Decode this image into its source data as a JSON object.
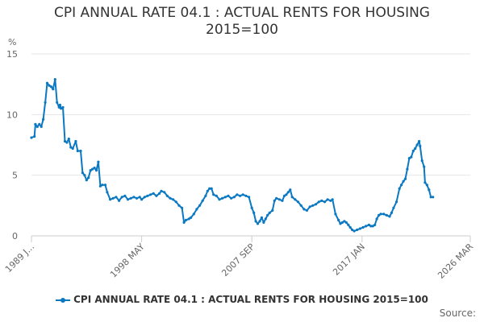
{
  "chart_data": {
    "type": "line",
    "title_lines": [
      "CPI ANNUAL RATE 04.1 : ACTUAL RENTS FOR HOUSING",
      "2015=100"
    ],
    "ylabel": "%",
    "ylim": [
      0,
      15
    ],
    "yticks": [
      "0",
      "5",
      "10",
      "15"
    ],
    "xticks": [
      {
        "label": "1989 J...",
        "index": 0
      },
      {
        "label": "1998 MAY",
        "index": 112
      },
      {
        "label": "2007 SEP",
        "index": 224
      },
      {
        "label": "2017 JAN",
        "index": 336
      },
      {
        "label": "2026 MAR",
        "index": 446
      }
    ],
    "x_count": 447,
    "grid": true,
    "legend_position": "bottom",
    "series": [
      {
        "name": "CPI ANNUAL RATE 04.1 : ACTUAL RENTS FOR HOUSING 2015=100",
        "color": "#0b78c2",
        "points": [
          [
            0,
            8.1
          ],
          [
            3,
            8.2
          ],
          [
            4,
            9.2
          ],
          [
            6,
            9.0
          ],
          [
            8,
            9.2
          ],
          [
            10,
            9.0
          ],
          [
            12,
            9.6
          ],
          [
            14,
            11.0
          ],
          [
            16,
            12.6
          ],
          [
            18,
            12.4
          ],
          [
            20,
            12.3
          ],
          [
            22,
            12.1
          ],
          [
            24,
            12.9
          ],
          [
            26,
            11.0
          ],
          [
            28,
            10.6
          ],
          [
            29,
            10.8
          ],
          [
            30,
            10.5
          ],
          [
            32,
            10.6
          ],
          [
            34,
            7.8
          ],
          [
            36,
            7.7
          ],
          [
            38,
            8.0
          ],
          [
            40,
            7.3
          ],
          [
            42,
            7.2
          ],
          [
            45,
            7.8
          ],
          [
            47,
            7.0
          ],
          [
            50,
            7.0
          ],
          [
            52,
            5.2
          ],
          [
            54,
            5.0
          ],
          [
            56,
            4.6
          ],
          [
            58,
            4.8
          ],
          [
            60,
            5.4
          ],
          [
            62,
            5.5
          ],
          [
            64,
            5.6
          ],
          [
            66,
            5.4
          ],
          [
            68,
            6.1
          ],
          [
            70,
            4.1
          ],
          [
            72,
            4.2
          ],
          [
            75,
            4.2
          ],
          [
            77,
            3.6
          ],
          [
            80,
            3.0
          ],
          [
            83,
            3.1
          ],
          [
            86,
            3.2
          ],
          [
            89,
            2.9
          ],
          [
            92,
            3.2
          ],
          [
            95,
            3.3
          ],
          [
            98,
            3.0
          ],
          [
            101,
            3.1
          ],
          [
            104,
            3.2
          ],
          [
            107,
            3.1
          ],
          [
            110,
            3.2
          ],
          [
            112,
            3.0
          ],
          [
            115,
            3.2
          ],
          [
            118,
            3.3
          ],
          [
            121,
            3.4
          ],
          [
            124,
            3.5
          ],
          [
            127,
            3.3
          ],
          [
            130,
            3.5
          ],
          [
            132,
            3.7
          ],
          [
            135,
            3.6
          ],
          [
            138,
            3.3
          ],
          [
            141,
            3.1
          ],
          [
            144,
            3.0
          ],
          [
            147,
            2.8
          ],
          [
            150,
            2.5
          ],
          [
            153,
            2.3
          ],
          [
            155,
            1.1
          ],
          [
            157,
            1.3
          ],
          [
            160,
            1.4
          ],
          [
            162,
            1.5
          ],
          [
            165,
            1.8
          ],
          [
            168,
            2.2
          ],
          [
            171,
            2.5
          ],
          [
            174,
            2.9
          ],
          [
            177,
            3.3
          ],
          [
            179,
            3.7
          ],
          [
            181,
            3.9
          ],
          [
            183,
            3.9
          ],
          [
            185,
            3.4
          ],
          [
            188,
            3.3
          ],
          [
            191,
            3.0
          ],
          [
            194,
            3.1
          ],
          [
            197,
            3.2
          ],
          [
            200,
            3.3
          ],
          [
            203,
            3.1
          ],
          [
            206,
            3.2
          ],
          [
            209,
            3.4
          ],
          [
            212,
            3.3
          ],
          [
            215,
            3.4
          ],
          [
            218,
            3.3
          ],
          [
            221,
            3.2
          ],
          [
            224,
            2.3
          ],
          [
            226,
            1.9
          ],
          [
            228,
            1.2
          ],
          [
            230,
            1.0
          ],
          [
            232,
            1.2
          ],
          [
            234,
            1.5
          ],
          [
            236,
            1.1
          ],
          [
            238,
            1.4
          ],
          [
            240,
            1.7
          ],
          [
            242,
            1.9
          ],
          [
            245,
            2.1
          ],
          [
            247,
            2.9
          ],
          [
            249,
            3.1
          ],
          [
            252,
            3.0
          ],
          [
            255,
            2.9
          ],
          [
            257,
            3.3
          ],
          [
            259,
            3.4
          ],
          [
            261,
            3.6
          ],
          [
            263,
            3.8
          ],
          [
            265,
            3.2
          ],
          [
            268,
            3.0
          ],
          [
            271,
            2.8
          ],
          [
            274,
            2.5
          ],
          [
            277,
            2.2
          ],
          [
            280,
            2.1
          ],
          [
            283,
            2.4
          ],
          [
            286,
            2.5
          ],
          [
            289,
            2.6
          ],
          [
            292,
            2.8
          ],
          [
            295,
            2.9
          ],
          [
            298,
            2.8
          ],
          [
            301,
            3.0
          ],
          [
            304,
            2.9
          ],
          [
            306,
            3.0
          ],
          [
            309,
            1.8
          ],
          [
            312,
            1.3
          ],
          [
            314,
            1.0
          ],
          [
            316,
            1.1
          ],
          [
            318,
            1.2
          ],
          [
            320,
            1.1
          ],
          [
            322,
            0.9
          ],
          [
            324,
            0.7
          ],
          [
            326,
            0.5
          ],
          [
            328,
            0.4
          ],
          [
            331,
            0.5
          ],
          [
            334,
            0.6
          ],
          [
            337,
            0.7
          ],
          [
            340,
            0.8
          ],
          [
            343,
            0.9
          ],
          [
            345,
            0.8
          ],
          [
            347,
            0.8
          ],
          [
            349,
            0.9
          ],
          [
            351,
            1.4
          ],
          [
            353,
            1.7
          ],
          [
            355,
            1.8
          ],
          [
            358,
            1.8
          ],
          [
            361,
            1.7
          ],
          [
            364,
            1.6
          ],
          [
            366,
            1.9
          ],
          [
            368,
            2.3
          ],
          [
            371,
            2.8
          ],
          [
            374,
            3.9
          ],
          [
            376,
            4.2
          ],
          [
            378,
            4.5
          ],
          [
            380,
            4.7
          ],
          [
            382,
            5.5
          ],
          [
            384,
            6.4
          ],
          [
            386,
            6.5
          ],
          [
            388,
            7.0
          ],
          [
            390,
            7.2
          ],
          [
            392,
            7.5
          ],
          [
            394,
            7.8
          ],
          [
            395,
            7.4
          ],
          [
            397,
            6.2
          ],
          [
            399,
            5.7
          ],
          [
            400,
            4.4
          ],
          [
            402,
            4.2
          ],
          [
            404,
            3.8
          ],
          [
            406,
            3.2
          ],
          [
            408,
            3.2
          ]
        ]
      }
    ]
  },
  "legend": {
    "label": "CPI ANNUAL RATE 04.1 : ACTUAL RENTS FOR HOUSING 2015=100"
  },
  "source": {
    "label": "Source:"
  }
}
